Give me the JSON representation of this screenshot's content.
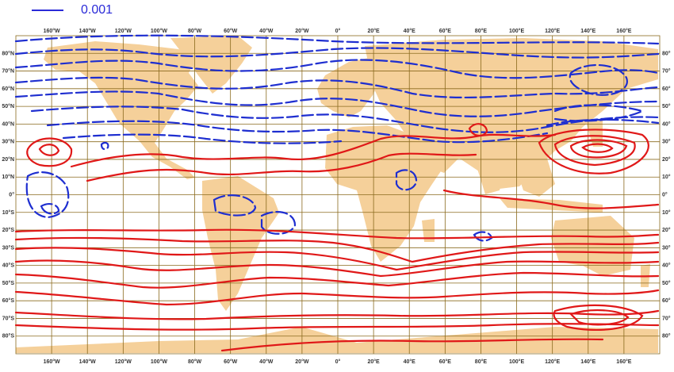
{
  "legend": {
    "label": "0.001",
    "line_color": "#2a2ad8"
  },
  "axes": {
    "lon_labels": [
      "160°W",
      "140°W",
      "120°W",
      "100°W",
      "80°W",
      "60°W",
      "40°W",
      "20°W",
      "0°",
      "20°E",
      "40°E",
      "60°E",
      "80°E",
      "100°E",
      "120°E",
      "140°E",
      "160°E"
    ],
    "lat_labels_left": [
      "80°N",
      "70°N",
      "60°N",
      "50°N",
      "40°N",
      "30°N",
      "20°N",
      "10°N",
      "0°",
      "10°S",
      "20°S",
      "30°S",
      "40°S",
      "50°S",
      "60°S",
      "70°S",
      "80°S"
    ],
    "lat_labels_right": [
      "80°",
      "70°",
      "60°",
      "50°",
      "40°",
      "30°",
      "20°",
      "10°",
      "0°",
      "10°",
      "20°",
      "30°",
      "40°",
      "50°",
      "60°",
      "70°",
      "80°"
    ]
  },
  "colors": {
    "land": "#f5d09a",
    "grid": "#8a6a1e",
    "positive_contour": "#e01818",
    "negative_contour": "#1e2ed0"
  }
}
